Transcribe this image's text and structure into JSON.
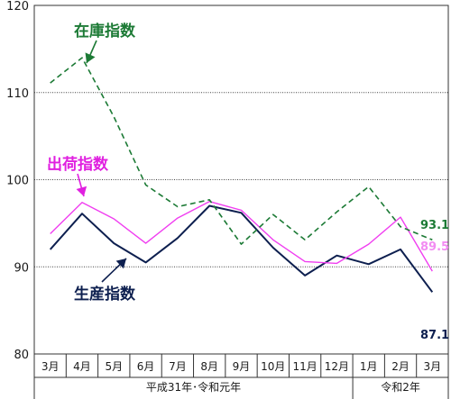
{
  "chart_data": {
    "type": "line",
    "categories": [
      "3月",
      "4月",
      "5月",
      "6月",
      "7月",
      "8月",
      "9月",
      "10月",
      "11月",
      "12月",
      "1月",
      "2月",
      "3月"
    ],
    "year_groups": [
      {
        "label": "平成31年･令和元年",
        "start": 0,
        "end": 9
      },
      {
        "label": "令和2年",
        "start": 10,
        "end": 12
      }
    ],
    "ylim": [
      80,
      120
    ],
    "yticks": [
      80,
      90,
      100,
      110,
      120
    ],
    "gridlines": [
      90,
      100,
      110
    ],
    "series": [
      {
        "name": "生産指数",
        "color": "#0d1f4f",
        "dash": "",
        "values": [
          92.0,
          96.1,
          92.7,
          90.5,
          93.3,
          97.0,
          96.2,
          92.2,
          89.0,
          91.3,
          90.3,
          92.0,
          87.1
        ],
        "end_label": "87.1",
        "end_label_color": "#0d1f4f"
      },
      {
        "name": "出荷指数",
        "color": "#f03ef0",
        "dash": "",
        "values": [
          93.8,
          97.4,
          95.5,
          92.7,
          95.6,
          97.5,
          96.5,
          93.1,
          90.6,
          90.4,
          92.6,
          95.7,
          89.5
        ],
        "end_label": "89.5",
        "end_label_color": "#f28cf2"
      },
      {
        "name": "在庫指数",
        "color": "#1c7a35",
        "dash": "6,4",
        "values": [
          111.1,
          114.0,
          107.2,
          99.4,
          96.9,
          97.7,
          92.6,
          96.0,
          93.1,
          96.3,
          99.2,
          94.6,
          93.1
        ],
        "end_label": "93.1",
        "end_label_color": "#1c7a35"
      }
    ],
    "annotations": [
      {
        "text": "在庫指数",
        "color": "#1c7a35"
      },
      {
        "text": "出荷指数",
        "color": "#e020e0"
      },
      {
        "text": "生産指数",
        "color": "#0d1f4f"
      }
    ]
  }
}
